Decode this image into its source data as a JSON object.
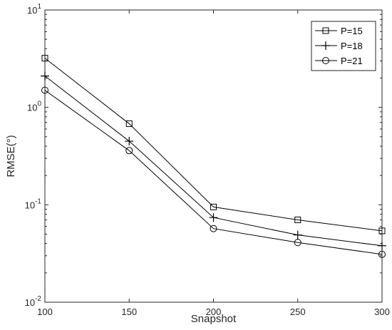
{
  "chart_data": {
    "type": "line",
    "xlabel": "Snapshot",
    "ylabel": "RMSE(°)",
    "x": [
      100,
      150,
      200,
      250,
      300
    ],
    "xlim": [
      100,
      300
    ],
    "xticks": [
      "100",
      "150",
      "200",
      "250",
      "300"
    ],
    "ylim": [
      0.01,
      10
    ],
    "yscale": "log",
    "yticks": [
      {
        "base": "10",
        "exp": "-2"
      },
      {
        "base": "10",
        "exp": "-1"
      },
      {
        "base": "10",
        "exp": "0"
      },
      {
        "base": "10",
        "exp": "1"
      }
    ],
    "grid": false,
    "legend_position": "top-right",
    "series": [
      {
        "name": "P=15",
        "marker": "square",
        "values": [
          3.2,
          0.68,
          0.095,
          0.07,
          0.054
        ]
      },
      {
        "name": "P=18",
        "marker": "plus",
        "values": [
          2.1,
          0.45,
          0.074,
          0.049,
          0.038
        ]
      },
      {
        "name": "P=21",
        "marker": "circle",
        "values": [
          1.5,
          0.36,
          0.057,
          0.041,
          0.031
        ]
      }
    ],
    "line_color": "#000000"
  }
}
